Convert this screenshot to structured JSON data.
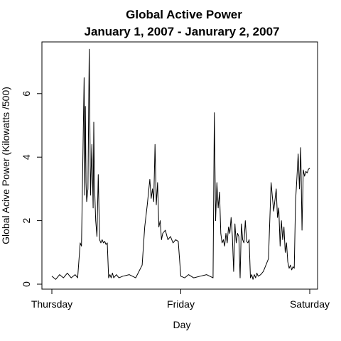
{
  "chart_data": {
    "type": "line",
    "title": "Global Active Power",
    "subtitle": "January 1, 2007 - Janurary 2, 2007",
    "xlabel": "Day",
    "ylabel": "Global Acive Power (Kilowatts /500)",
    "xlim": [
      0,
      2
    ],
    "ylim": [
      0,
      7.5
    ],
    "x_ticks": [
      {
        "value": 0,
        "label": "Thursday"
      },
      {
        "value": 1,
        "label": "Friday"
      },
      {
        "value": 2,
        "label": "Saturday"
      }
    ],
    "y_ticks": [
      {
        "value": 0,
        "label": "0"
      },
      {
        "value": 2,
        "label": "2"
      },
      {
        "value": 4,
        "label": "4"
      },
      {
        "value": 6,
        "label": "6"
      }
    ],
    "grid": false,
    "legend": "none",
    "series": [
      {
        "x": [
          0,
          0.03,
          0.06,
          0.09,
          0.12,
          0.15,
          0.18,
          0.2,
          0.22,
          0.23,
          0.25,
          0.255,
          0.26,
          0.265,
          0.27,
          0.28,
          0.29,
          0.3,
          0.31,
          0.32,
          0.325,
          0.33,
          0.34,
          0.35,
          0.36,
          0.37,
          0.38,
          0.39,
          0.4,
          0.41,
          0.42,
          0.43,
          0.44,
          0.45,
          0.46,
          0.47,
          0.48,
          0.5,
          0.52,
          0.55,
          0.6,
          0.65,
          0.7,
          0.72,
          0.74,
          0.75,
          0.76,
          0.77,
          0.78,
          0.79,
          0.8,
          0.81,
          0.82,
          0.83,
          0.84,
          0.85,
          0.86,
          0.88,
          0.9,
          0.92,
          0.94,
          0.96,
          0.98,
          1.0,
          1.03,
          1.06,
          1.1,
          1.15,
          1.2,
          1.25,
          1.26,
          1.27,
          1.28,
          1.29,
          1.3,
          1.31,
          1.32,
          1.33,
          1.34,
          1.35,
          1.36,
          1.37,
          1.38,
          1.39,
          1.4,
          1.41,
          1.42,
          1.43,
          1.44,
          1.45,
          1.46,
          1.47,
          1.48,
          1.49,
          1.5,
          1.51,
          1.52,
          1.53,
          1.54,
          1.55,
          1.56,
          1.57,
          1.58,
          1.59,
          1.6,
          1.62,
          1.64,
          1.66,
          1.68,
          1.7,
          1.72,
          1.74,
          1.75,
          1.76,
          1.77,
          1.78,
          1.79,
          1.8,
          1.81,
          1.82,
          1.83,
          1.84,
          1.85,
          1.86,
          1.87,
          1.88,
          1.89,
          1.9,
          1.91,
          1.92,
          1.93,
          1.94,
          1.95,
          1.96,
          1.97,
          1.98,
          1.99,
          2.0
        ],
        "values": [
          0.25,
          0.15,
          0.3,
          0.2,
          0.35,
          0.2,
          0.3,
          0.2,
          1.3,
          1.2,
          6.5,
          2.8,
          5.6,
          3.2,
          2.6,
          3.0,
          7.4,
          2.8,
          4.4,
          2.4,
          5.1,
          3.2,
          2.0,
          1.5,
          3.45,
          1.4,
          1.3,
          1.4,
          1.3,
          1.35,
          1.25,
          1.3,
          0.2,
          0.3,
          0.2,
          0.35,
          0.2,
          0.3,
          0.2,
          0.25,
          0.3,
          0.2,
          0.6,
          1.8,
          2.5,
          2.9,
          3.3,
          2.7,
          3.0,
          2.6,
          4.4,
          2.5,
          3.2,
          1.8,
          2.0,
          1.4,
          1.6,
          1.7,
          1.4,
          1.5,
          1.3,
          1.4,
          1.35,
          0.25,
          0.2,
          0.3,
          0.2,
          0.25,
          0.3,
          0.2,
          5.4,
          2.0,
          3.2,
          2.4,
          2.9,
          1.6,
          1.3,
          1.4,
          1.2,
          1.6,
          1.3,
          1.8,
          1.6,
          2.1,
          1.5,
          0.4,
          1.9,
          1.3,
          1.6,
          1.5,
          0.2,
          1.9,
          1.4,
          1.3,
          2.0,
          1.35,
          1.3,
          1.4,
          0.2,
          0.3,
          0.15,
          0.3,
          0.2,
          0.35,
          0.25,
          0.3,
          0.4,
          0.6,
          0.8,
          3.2,
          2.3,
          3.0,
          2.1,
          2.4,
          1.2,
          2.0,
          1.4,
          1.8,
          1.0,
          1.3,
          0.7,
          0.5,
          0.6,
          0.45,
          0.55,
          0.5,
          2.6,
          3.3,
          4.1,
          3.0,
          4.3,
          1.7,
          3.6,
          3.4,
          3.55,
          3.5,
          3.62,
          3.65
        ]
      }
    ]
  }
}
